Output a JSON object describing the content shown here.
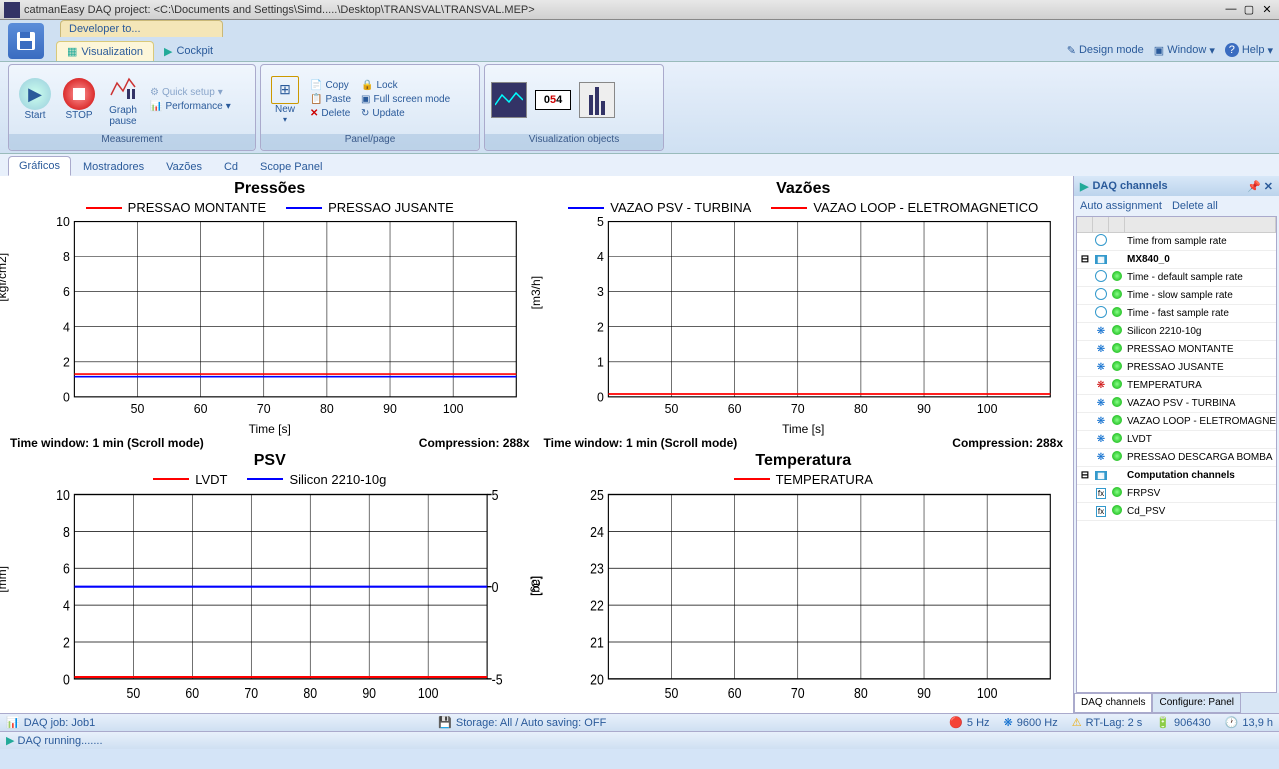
{
  "window_title": "catmanEasy DAQ project: <C:\\Documents and Settings\\Simd.....\\Desktop\\TRANSVAL\\TRANSVAL.MEP>",
  "dev_tab": "Developer to...",
  "main_tabs": {
    "viz": "Visualization",
    "cockpit": "Cockpit"
  },
  "ribbon_right": {
    "design": "Design mode",
    "window": "Window",
    "help": "Help"
  },
  "ribbon": {
    "measurement": {
      "title": "Measurement",
      "start": "Start",
      "stop": "STOP",
      "pause": "Graph\npause",
      "quick": "Quick setup",
      "perf": "Performance"
    },
    "panelpage": {
      "title": "Panel/page",
      "new": "New",
      "copy": "Copy",
      "paste": "Paste",
      "delete": "Delete",
      "lock": "Lock",
      "fullscreen": "Full screen mode",
      "update": "Update"
    },
    "vizobj": {
      "title": "Visualization objects"
    }
  },
  "content_tabs": [
    "Gráficos",
    "Mostradores",
    "Vazões",
    "Cd",
    "Scope Panel"
  ],
  "charts": {
    "pressoes": {
      "title": "Pressões",
      "legend": [
        {
          "label": "PRESSAO MONTANTE",
          "color": "#ff0000"
        },
        {
          "label": "PRESSAO JUSANTE",
          "color": "#0000ff"
        }
      ],
      "ylabel": "[kgf/cm2]",
      "xlabel": "Time [s]",
      "ylim": [
        0,
        10
      ],
      "yticks": [
        0,
        2,
        4,
        6,
        8,
        10
      ],
      "xlim": [
        40,
        110
      ],
      "xticks": [
        50,
        60,
        70,
        80,
        90,
        100
      ],
      "lines": [
        {
          "color": "#ff0000",
          "y": 1.3
        },
        {
          "color": "#0000ff",
          "y": 1.15
        }
      ],
      "time_window": "Time window: 1 min (Scroll mode)",
      "compression": "Compression: 288x"
    },
    "vazoes": {
      "title": "Vazões",
      "legend": [
        {
          "label": "VAZAO PSV - TURBINA",
          "color": "#0000ff"
        },
        {
          "label": "VAZAO LOOP - ELETROMAGNETICO",
          "color": "#ff0000"
        }
      ],
      "ylabel": "[m3/h]",
      "xlabel": "Time [s]",
      "ylim": [
        0,
        5
      ],
      "yticks": [
        0,
        1,
        2,
        3,
        4,
        5
      ],
      "xlim": [
        40,
        110
      ],
      "xticks": [
        50,
        60,
        70,
        80,
        90,
        100
      ],
      "lines": [
        {
          "color": "#ff0000",
          "y": 0.08
        }
      ],
      "time_window": "Time window: 1 min (Scroll mode)",
      "compression": "Compression: 288x"
    },
    "psv": {
      "title": "PSV",
      "legend": [
        {
          "label": "LVDT",
          "color": "#ff0000"
        },
        {
          "label": "Silicon 2210-10g",
          "color": "#0000ff"
        }
      ],
      "ylabel": "[mm]",
      "ylabel2": "[ag]",
      "ylim": [
        0,
        10
      ],
      "yticks": [
        0,
        2,
        4,
        6,
        8,
        10
      ],
      "ylim2": [
        -5,
        5
      ],
      "yticks2": [
        -5,
        0,
        5
      ],
      "xlim": [
        40,
        110
      ],
      "xticks": [
        50,
        60,
        70,
        80,
        90,
        100
      ],
      "lines": [
        {
          "color": "#0000ff",
          "y": 5.0
        },
        {
          "color": "#ff0000",
          "y": 0.1
        }
      ]
    },
    "temperatura": {
      "title": "Temperatura",
      "legend": [
        {
          "label": "TEMPERATURA",
          "color": "#ff0000"
        }
      ],
      "ylabel": "[°C]",
      "ylim": [
        20,
        25
      ],
      "yticks": [
        20,
        21,
        22,
        23,
        24,
        25
      ],
      "xlim": [
        40,
        110
      ],
      "xticks": [
        50,
        60,
        70,
        80,
        90,
        100
      ],
      "lines": []
    }
  },
  "side": {
    "title": "DAQ channels",
    "auto": "Auto assignment",
    "delall": "Delete all",
    "rows": [
      {
        "i": "clk",
        "t": "Time from sample rate"
      },
      {
        "i": "hdr",
        "t": "MX840_0"
      },
      {
        "i": "clk",
        "g": 1,
        "t": "Time  - default sample rate"
      },
      {
        "i": "clk",
        "g": 1,
        "t": "Time  - slow sample rate"
      },
      {
        "i": "clk",
        "g": 1,
        "t": "Time  - fast sample rate"
      },
      {
        "i": "sig",
        "g": 1,
        "t": "Silicon 2210-10g"
      },
      {
        "i": "sig",
        "g": 1,
        "t": "PRESSAO MONTANTE"
      },
      {
        "i": "sig",
        "g": 1,
        "t": "PRESSAO JUSANTE"
      },
      {
        "i": "sigr",
        "g": 1,
        "t": "TEMPERATURA"
      },
      {
        "i": "sig",
        "g": 1,
        "t": "VAZAO PSV - TURBINA"
      },
      {
        "i": "sig",
        "g": 1,
        "t": "VAZAO LOOP - ELETROMAGNE"
      },
      {
        "i": "sig",
        "g": 1,
        "t": "LVDT"
      },
      {
        "i": "sig",
        "g": 1,
        "t": "PRESSAO DESCARGA BOMBA"
      },
      {
        "i": "hdr",
        "t": "Computation channels"
      },
      {
        "i": "fx",
        "g": 1,
        "t": "FRPSV"
      },
      {
        "i": "fx",
        "g": 1,
        "t": "Cd_PSV"
      }
    ],
    "bottom_tabs": [
      "DAQ channels",
      "Configure: Panel"
    ]
  },
  "status": {
    "job": "DAQ job: Job1",
    "storage": "Storage: All / Auto saving: OFF",
    "hz5": "5 Hz",
    "hz9600": "9600 Hz",
    "rtlag": "RT-Lag: 2 s",
    "count": "906430",
    "hrs": "13,9 h",
    "running": "DAQ running......."
  },
  "colors": {
    "grid": "#000",
    "bg": "#fff"
  }
}
